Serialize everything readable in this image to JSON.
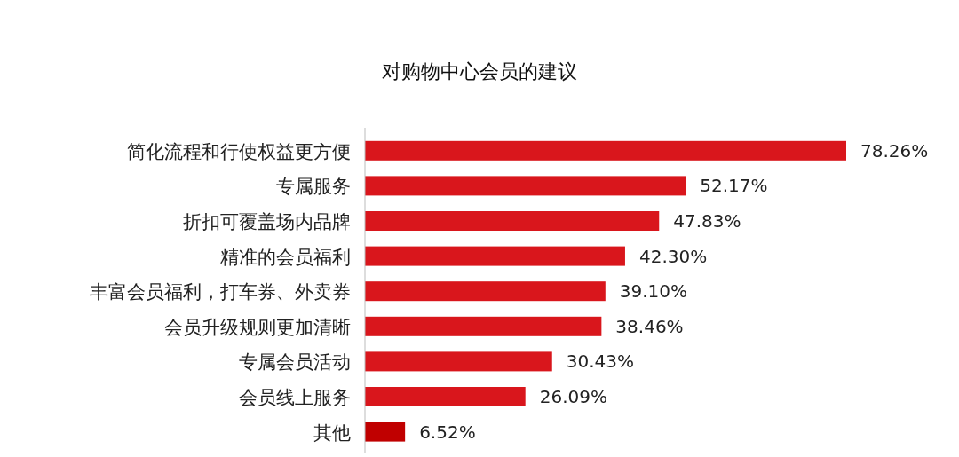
{
  "chart_data": {
    "type": "bar",
    "orientation": "horizontal",
    "title": "对购物中心会员的建议",
    "categories": [
      "简化流程和行使权益更方便",
      "专属服务",
      "折扣可覆盖场内品牌",
      "精准的会员福利",
      "丰富会员福利，打车券、外卖券",
      "会员升级规则更加清晰",
      "专属会员活动",
      "会员线上服务",
      "其他"
    ],
    "values": [
      78.26,
      52.17,
      47.83,
      42.3,
      39.1,
      38.46,
      30.43,
      26.09,
      6.52
    ],
    "value_labels": [
      "78.26%",
      "52.17%",
      "47.83%",
      "42.30%",
      "39.10%",
      "38.46%",
      "30.43%",
      "26.09%",
      "6.52%"
    ],
    "colors": [
      "#d9161c",
      "#d9161c",
      "#d9161c",
      "#d9161c",
      "#d9161c",
      "#d9161c",
      "#d9161c",
      "#d9161c",
      "#c00000"
    ]
  }
}
